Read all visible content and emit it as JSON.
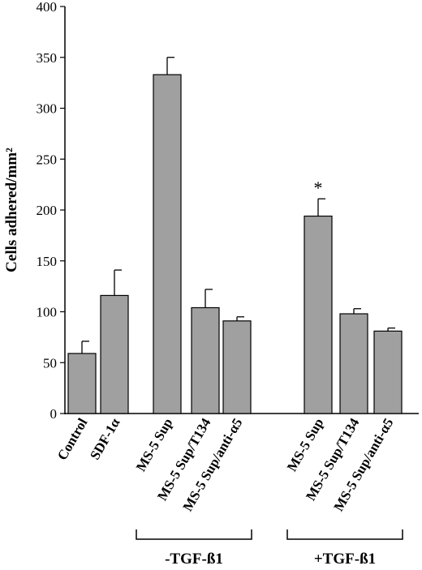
{
  "chart_data": {
    "type": "bar",
    "title": "",
    "xlabel": "",
    "ylabel": "Cells adhered/mm²",
    "ylim": [
      0,
      400
    ],
    "yticks": [
      0,
      50,
      100,
      150,
      200,
      250,
      300,
      350,
      400
    ],
    "grid": false,
    "legend": "none",
    "categories": [
      "Control",
      "SDF-1α",
      "MS-5 Sup",
      "MS-5 Sup/T134",
      "MS-5 Sup/anti-α5",
      "MS-5 Sup",
      "MS-5 Sup/T134",
      "MS-5 Sup/anti-α5"
    ],
    "values": [
      59,
      116,
      333,
      104,
      91,
      194,
      98,
      81
    ],
    "errors": [
      12,
      25,
      17,
      18,
      4,
      17,
      5,
      3
    ],
    "groups": [
      {
        "label": "-TGF-ß1",
        "categories": [
          2,
          3,
          4
        ]
      },
      {
        "label": "+TGF-ß1",
        "categories": [
          5,
          6,
          7
        ]
      }
    ],
    "annotations": [
      {
        "category": 5,
        "text": "*"
      }
    ],
    "bar_color": "#a0a0a0"
  }
}
